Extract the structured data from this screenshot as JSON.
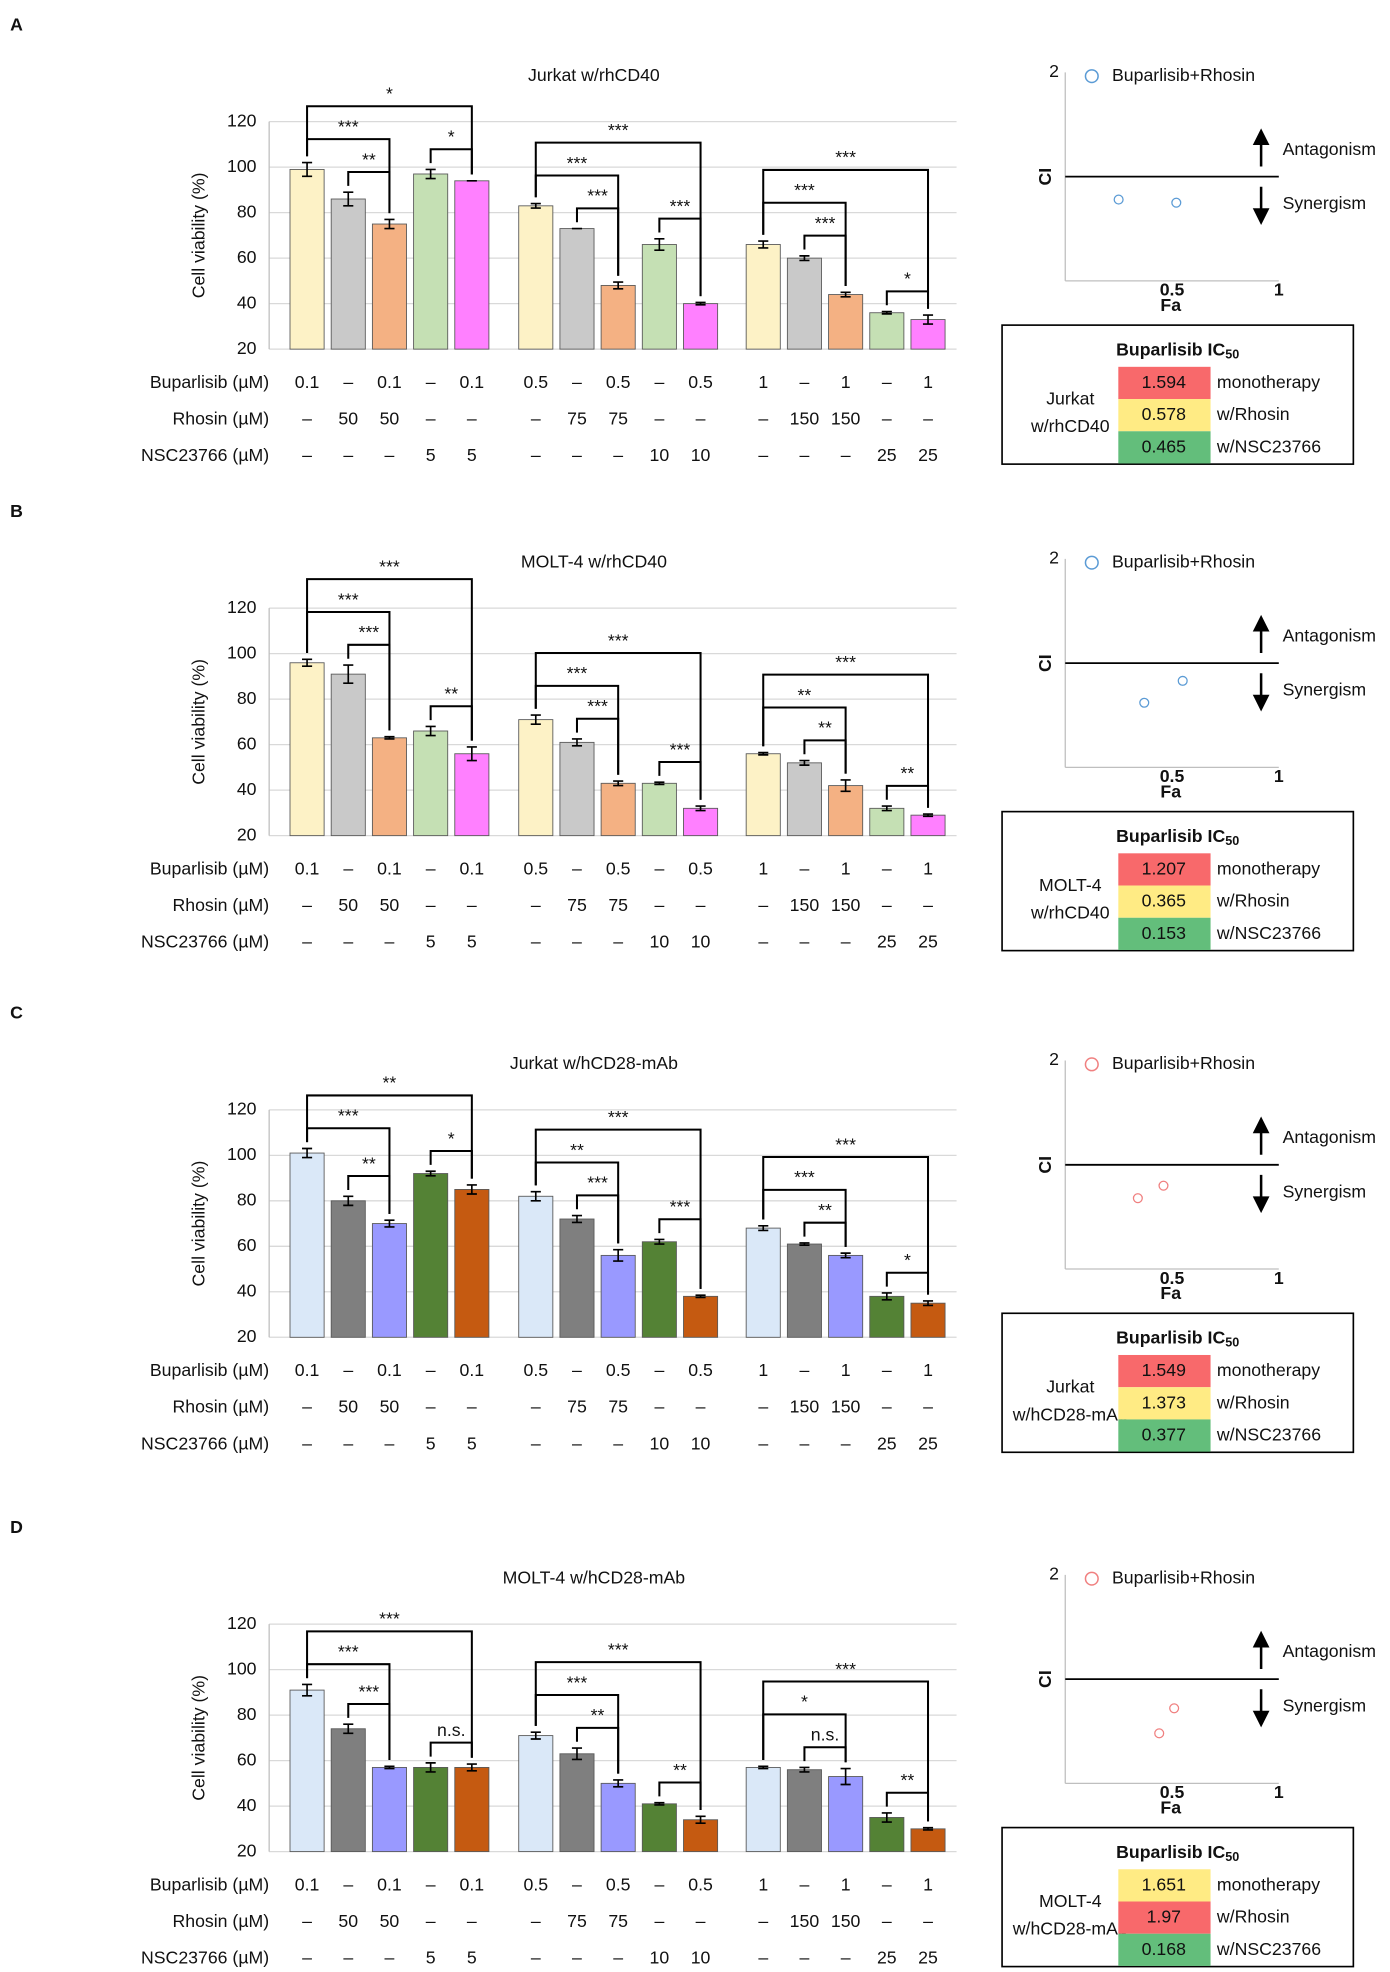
{
  "panel_labels": [
    "A",
    "B",
    "C",
    "D"
  ],
  "treatments": [
    {
      "name": "Buparlisib (µM)",
      "values": [
        "0.1",
        "–",
        "0.1",
        "–",
        "0.1",
        "0.5",
        "–",
        "0.5",
        "–",
        "0.5",
        "1",
        "–",
        "1",
        "–",
        "1"
      ]
    },
    {
      "name": "Rhosin (µM)",
      "values": [
        "–",
        "50",
        "50",
        "–",
        "–",
        "–",
        "75",
        "75",
        "–",
        "–",
        "–",
        "150",
        "150",
        "–",
        "–"
      ]
    },
    {
      "name": "NSC23766 (µM)",
      "values": [
        "–",
        "–",
        "–",
        "5",
        "5",
        "–",
        "–",
        "–",
        "10",
        "10",
        "–",
        "–",
        "–",
        "25",
        "25"
      ]
    }
  ],
  "chart_data": [
    {
      "type": "bar",
      "title": "Jurkat w/rhCD40",
      "ylabel": "Cell viability (%)",
      "ylim": [
        20,
        120
      ],
      "yticks": [
        20,
        40,
        60,
        80,
        100,
        120
      ],
      "grid": true,
      "colors": [
        "#fdf2c6",
        "#c9c9c9",
        "#f4b183",
        "#c5e0b4",
        "#ff80ff"
      ],
      "values": [
        99,
        86,
        75,
        97,
        94,
        83,
        73,
        48,
        66,
        40,
        66,
        60,
        44,
        36,
        33
      ],
      "errors": [
        3,
        3,
        2,
        2,
        0,
        1,
        0,
        1.5,
        2.5,
        0.5,
        1.5,
        1,
        1,
        0.5,
        2
      ],
      "brackets": [
        {
          "from": 1,
          "to": 2,
          "label": "**"
        },
        {
          "from": 0,
          "to": 2,
          "label": "***"
        },
        {
          "from": 3,
          "to": 4,
          "label": "*"
        },
        {
          "from": 0,
          "to": 4,
          "label": "*"
        },
        {
          "from": 6,
          "to": 7,
          "label": "***"
        },
        {
          "from": 5,
          "to": 7,
          "label": "***"
        },
        {
          "from": 8,
          "to": 9,
          "label": "***"
        },
        {
          "from": 5,
          "to": 9,
          "label": "***"
        },
        {
          "from": 11,
          "to": 12,
          "label": "***"
        },
        {
          "from": 10,
          "to": 12,
          "label": "***"
        },
        {
          "from": 13,
          "to": 14,
          "label": "*"
        },
        {
          "from": 10,
          "to": 14,
          "label": "***"
        }
      ]
    },
    {
      "type": "scatter",
      "xlabel": "Fa",
      "ylabel": "CI",
      "xlim": [
        0,
        1
      ],
      "ylim": [
        0,
        2
      ],
      "xticks": [
        0.5,
        1
      ],
      "yticks": [
        2
      ],
      "reference_line": 1,
      "annotations": [
        "Antagonism",
        "Synergism"
      ],
      "series": [
        {
          "name": "Buparlisib+Rhosin",
          "color": "#5b9bd5",
          "x": [
            0.25,
            0.52
          ],
          "values": [
            0.78,
            0.75
          ]
        }
      ]
    },
    {
      "type": "bar",
      "title": "MOLT-4 w/rhCD40",
      "ylabel": "Cell viability (%)",
      "ylim": [
        20,
        120
      ],
      "yticks": [
        20,
        40,
        60,
        80,
        100,
        120
      ],
      "grid": true,
      "colors": [
        "#fdf2c6",
        "#c9c9c9",
        "#f4b183",
        "#c5e0b4",
        "#ff80ff"
      ],
      "values": [
        96,
        91,
        63,
        66,
        56,
        71,
        61,
        43,
        43,
        32,
        56,
        52,
        42,
        32,
        29
      ],
      "errors": [
        1.5,
        4,
        0.5,
        2,
        3,
        2,
        1.5,
        1,
        0.5,
        1,
        0.5,
        1,
        2.5,
        1,
        0.5
      ],
      "brackets": [
        {
          "from": 1,
          "to": 2,
          "label": "***"
        },
        {
          "from": 0,
          "to": 2,
          "label": "***"
        },
        {
          "from": 3,
          "to": 4,
          "label": "**"
        },
        {
          "from": 0,
          "to": 4,
          "label": "***"
        },
        {
          "from": 6,
          "to": 7,
          "label": "***"
        },
        {
          "from": 5,
          "to": 7,
          "label": "***"
        },
        {
          "from": 8,
          "to": 9,
          "label": "***"
        },
        {
          "from": 5,
          "to": 9,
          "label": "***"
        },
        {
          "from": 11,
          "to": 12,
          "label": "**"
        },
        {
          "from": 10,
          "to": 12,
          "label": "**"
        },
        {
          "from": 13,
          "to": 14,
          "label": "**"
        },
        {
          "from": 10,
          "to": 14,
          "label": "***"
        }
      ]
    },
    {
      "type": "scatter",
      "xlabel": "Fa",
      "ylabel": "CI",
      "xlim": [
        0,
        1
      ],
      "ylim": [
        0,
        2
      ],
      "xticks": [
        0.5,
        1
      ],
      "yticks": [
        2
      ],
      "reference_line": 1,
      "annotations": [
        "Antagonism",
        "Synergism"
      ],
      "series": [
        {
          "name": "Buparlisib+Rhosin",
          "color": "#5b9bd5",
          "x": [
            0.37,
            0.55
          ],
          "values": [
            0.62,
            0.83
          ]
        }
      ]
    },
    {
      "type": "bar",
      "title": "Jurkat w/hCD28-mAb",
      "ylabel": "Cell viability (%)",
      "ylim": [
        20,
        120
      ],
      "yticks": [
        20,
        40,
        60,
        80,
        100,
        120
      ],
      "grid": true,
      "colors": [
        "#dae8f8",
        "#7f7f7f",
        "#9999ff",
        "#548235",
        "#c55a11"
      ],
      "values": [
        101,
        80,
        70,
        92,
        85,
        82,
        72,
        56,
        62,
        38,
        68,
        61,
        56,
        38,
        35
      ],
      "errors": [
        2,
        2,
        1.5,
        1,
        2,
        2,
        1.5,
        2.5,
        1,
        0.5,
        1,
        0.5,
        1,
        1.5,
        1
      ],
      "brackets": [
        {
          "from": 1,
          "to": 2,
          "label": "**"
        },
        {
          "from": 0,
          "to": 2,
          "label": "***"
        },
        {
          "from": 3,
          "to": 4,
          "label": "*"
        },
        {
          "from": 0,
          "to": 4,
          "label": "**"
        },
        {
          "from": 6,
          "to": 7,
          "label": "***"
        },
        {
          "from": 5,
          "to": 7,
          "label": "**"
        },
        {
          "from": 8,
          "to": 9,
          "label": "***"
        },
        {
          "from": 5,
          "to": 9,
          "label": "***"
        },
        {
          "from": 11,
          "to": 12,
          "label": "**"
        },
        {
          "from": 10,
          "to": 12,
          "label": "***"
        },
        {
          "from": 13,
          "to": 14,
          "label": "*"
        },
        {
          "from": 10,
          "to": 14,
          "label": "***"
        }
      ]
    },
    {
      "type": "scatter",
      "xlabel": "Fa",
      "ylabel": "CI",
      "xlim": [
        0,
        1
      ],
      "ylim": [
        0,
        2
      ],
      "xticks": [
        0.5,
        1
      ],
      "yticks": [
        2
      ],
      "reference_line": 1,
      "annotations": [
        "Antagonism",
        "Synergism"
      ],
      "series": [
        {
          "name": "Buparlisib+Rhosin",
          "color": "#f08080",
          "x": [
            0.34,
            0.46
          ],
          "values": [
            0.68,
            0.8
          ]
        }
      ]
    },
    {
      "type": "bar",
      "title": "MOLT-4 w/hCD28-mAb",
      "ylabel": "Cell viability (%)",
      "ylim": [
        20,
        120
      ],
      "yticks": [
        20,
        40,
        60,
        80,
        100,
        120
      ],
      "grid": true,
      "colors": [
        "#dae8f8",
        "#7f7f7f",
        "#9999ff",
        "#548235",
        "#c55a11"
      ],
      "values": [
        91,
        74,
        57,
        57,
        57,
        71,
        63,
        50,
        41,
        34,
        57,
        56,
        53,
        35,
        30
      ],
      "errors": [
        2.5,
        2,
        0.5,
        2,
        1.5,
        1.5,
        2.5,
        1.5,
        0.5,
        1.5,
        0.5,
        1,
        3.5,
        2,
        0.5
      ],
      "brackets": [
        {
          "from": 1,
          "to": 2,
          "label": "***"
        },
        {
          "from": 0,
          "to": 2,
          "label": "***"
        },
        {
          "from": 3,
          "to": 4,
          "label": "n.s."
        },
        {
          "from": 0,
          "to": 4,
          "label": "***"
        },
        {
          "from": 6,
          "to": 7,
          "label": "**"
        },
        {
          "from": 5,
          "to": 7,
          "label": "***"
        },
        {
          "from": 8,
          "to": 9,
          "label": "**"
        },
        {
          "from": 5,
          "to": 9,
          "label": "***"
        },
        {
          "from": 11,
          "to": 12,
          "label": "n.s."
        },
        {
          "from": 10,
          "to": 12,
          "label": "*"
        },
        {
          "from": 13,
          "to": 14,
          "label": "**"
        },
        {
          "from": 10,
          "to": 14,
          "label": "***"
        }
      ]
    },
    {
      "type": "scatter",
      "xlabel": "Fa",
      "ylabel": "CI",
      "xlim": [
        0,
        1
      ],
      "ylim": [
        0,
        2
      ],
      "xticks": [
        0.5,
        1
      ],
      "yticks": [
        2
      ],
      "reference_line": 1,
      "annotations": [
        "Antagonism",
        "Synergism"
      ],
      "series": [
        {
          "name": "Buparlisib+Rhosin",
          "color": "#f08080",
          "x": [
            0.44,
            0.51
          ],
          "values": [
            0.48,
            0.72
          ]
        }
      ]
    }
  ],
  "ic50_tables": [
    {
      "title": "Buparlisib IC",
      "title_sub": "50",
      "cell_line": [
        "Jurkat",
        "w/rhCD40"
      ],
      "rows": [
        {
          "value": 1.594,
          "label": "monotherapy",
          "color": "#f8696b"
        },
        {
          "value": 0.578,
          "label": "w/Rhosin",
          "color": "#ffeb84"
        },
        {
          "value": 0.465,
          "label": "w/NSC23766",
          "color": "#63be7b"
        }
      ]
    },
    {
      "title": "Buparlisib IC",
      "title_sub": "50",
      "cell_line": [
        "MOLT-4",
        "w/rhCD40"
      ],
      "rows": [
        {
          "value": 1.207,
          "label": "monotherapy",
          "color": "#f8696b"
        },
        {
          "value": 0.365,
          "label": "w/Rhosin",
          "color": "#ffeb84"
        },
        {
          "value": 0.153,
          "label": "w/NSC23766",
          "color": "#63be7b"
        }
      ]
    },
    {
      "title": "Buparlisib IC",
      "title_sub": "50",
      "cell_line": [
        "Jurkat",
        "w/hCD28-mAb"
      ],
      "rows": [
        {
          "value": 1.549,
          "label": "monotherapy",
          "color": "#f8696b"
        },
        {
          "value": 1.373,
          "label": "w/Rhosin",
          "color": "#ffeb84"
        },
        {
          "value": 0.377,
          "label": "w/NSC23766",
          "color": "#63be7b"
        }
      ]
    },
    {
      "title": "Buparlisib IC",
      "title_sub": "50",
      "cell_line": [
        "MOLT-4",
        "w/hCD28-mAb"
      ],
      "rows": [
        {
          "value": 1.651,
          "label": "monotherapy",
          "color": "#ffeb84"
        },
        {
          "value": 1.97,
          "label": "w/Rhosin",
          "color": "#f8696b"
        },
        {
          "value": 0.168,
          "label": "w/NSC23766",
          "color": "#63be7b"
        }
      ]
    }
  ]
}
